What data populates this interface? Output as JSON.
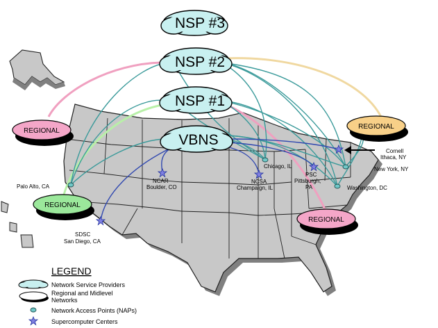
{
  "clouds": {
    "nsp3": "NSP #3",
    "nsp2": "NSP #2",
    "nsp1": "NSP #1",
    "vbns": "VBNS"
  },
  "regional": {
    "west": "REGIONAL",
    "northwest": "REGIONAL",
    "northeast": "REGIONAL",
    "southeast": "REGIONAL"
  },
  "sites": {
    "palo_alto": "Palo Alto, CA",
    "ncar_1": "NCAR",
    "ncar_2": "Boulder, CO",
    "sdsc_1": "SDSC",
    "sdsc_2": "San Diego, CA",
    "chicago": "Chicago, IL",
    "ncsa_1": "NCSA",
    "ncsa_2": "Champaign, IL",
    "psc_1": "PSC",
    "psc_2": "Pittsburgh,",
    "psc_3": "PA",
    "cornell_1": "Cornell",
    "cornell_2": "Ithaca, NY",
    "new_york": "New York, NY",
    "washington": "Washington, DC"
  },
  "legend": {
    "title": "LEGEND",
    "nsp": "Network Service Providers",
    "regional_1": "Regional and Midlevel",
    "regional_2": "Networks",
    "naps": "Network Access Points (NAPs)",
    "supercomputers": "Supercomputer Centers"
  },
  "colors": {
    "cloud": "#c8f0f0",
    "nap": "#70c8c8",
    "teal_line": "#3a9a9a",
    "blue_line": "#3048b0",
    "pink_region": "#f4a6c8",
    "green_region": "#9be89b",
    "orange_region": "#f8d088",
    "pink_line": "#f0a0c0",
    "green_line": "#b8f0a8",
    "orange_line": "#f0d8a0",
    "map_fill": "#c8c8c8",
    "map_shadow": "#808080",
    "star": "#8080e0"
  },
  "icons": [
    "cloud-icon",
    "ellipse-icon",
    "nap-dot-icon",
    "star-icon"
  ]
}
